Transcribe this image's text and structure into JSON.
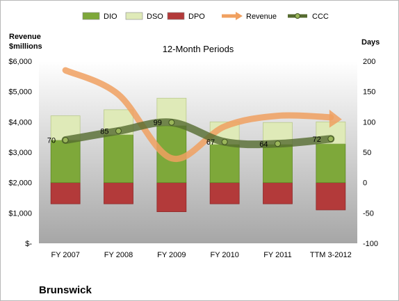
{
  "chart_data": {
    "type": "bar",
    "title": "Brunswick",
    "subtitle": "12-Month Periods",
    "categories": [
      "FY 2007",
      "FY 2008",
      "FY 2009",
      "FY 2010",
      "FY 2011",
      "TTM 3-2012"
    ],
    "left_axis": {
      "label_line1": "Revenue",
      "label_line2": "$millions",
      "ylim": [
        0,
        6000
      ],
      "ticks": [
        "$-",
        "$1,000",
        "$2,000",
        "$3,000",
        "$4,000",
        "$5,000",
        "$6,000"
      ]
    },
    "right_axis": {
      "label": "Days",
      "ylim": [
        -100,
        200
      ],
      "ticks": [
        "-100",
        "-50",
        "0",
        "50",
        "100",
        "150",
        "200"
      ]
    },
    "series": [
      {
        "name": "DIO",
        "axis": "right",
        "kind": "stacked-bar",
        "color": "#7ea83a",
        "values": [
          70,
          79,
          94,
          63,
          63,
          64
        ]
      },
      {
        "name": "DSO",
        "axis": "right",
        "kind": "stacked-bar",
        "color": "#dfeab8",
        "values": [
          40,
          41,
          45,
          37,
          36,
          36
        ]
      },
      {
        "name": "DPO",
        "axis": "right",
        "kind": "negative-bar",
        "color": "#b33a3a",
        "values": [
          -35,
          -35,
          -48,
          -35,
          -35,
          -45
        ]
      },
      {
        "name": "Revenue",
        "axis": "left",
        "kind": "line",
        "color": "#f0a060",
        "values": [
          5700,
          4900,
          2800,
          3850,
          4200,
          4150
        ]
      },
      {
        "name": "CCC",
        "axis": "right",
        "kind": "line-markers",
        "color": "#556b2f",
        "values": [
          70,
          85,
          99,
          67,
          64,
          72
        ]
      }
    ],
    "ccc_labels": [
      "70",
      "85",
      "99",
      "67",
      "64",
      "72"
    ],
    "grid": false,
    "legend_position": "top"
  },
  "legend": [
    {
      "name": "DIO",
      "type": "box",
      "color": "#7ea83a"
    },
    {
      "name": "DSO",
      "type": "box",
      "color": "#dfeab8"
    },
    {
      "name": "DPO",
      "type": "box",
      "color": "#b33a3a"
    },
    {
      "name": "Revenue",
      "type": "arrow",
      "color": "#f0a060"
    },
    {
      "name": "CCC",
      "type": "line-dot",
      "color": "#556b2f"
    }
  ],
  "colors": {
    "plot_top": "#ffffff",
    "plot_bottom": "#a8a8a8"
  }
}
